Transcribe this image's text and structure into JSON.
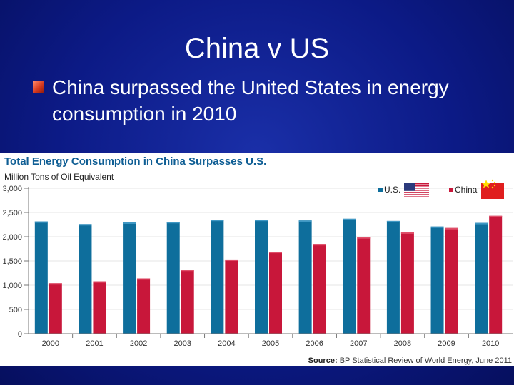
{
  "slide": {
    "title": "China v US",
    "bullet": "China surpassed the United States in energy consumption in 2010"
  },
  "chart_data": {
    "type": "bar",
    "title": "Total Energy Consumption in China Surpasses U.S.",
    "ylabel": "Million Tons of Oil Equivalent",
    "xlabel": "",
    "categories": [
      "2000",
      "2001",
      "2002",
      "2003",
      "2004",
      "2005",
      "2006",
      "2007",
      "2008",
      "2009",
      "2010"
    ],
    "series": [
      {
        "name": "U.S.",
        "color": "#0e6e9c",
        "values": [
          2315,
          2260,
          2295,
          2305,
          2350,
          2350,
          2335,
          2370,
          2325,
          2210,
          2285
        ]
      },
      {
        "name": "China",
        "color": "#c8173a",
        "values": [
          1040,
          1080,
          1140,
          1320,
          1530,
          1690,
          1850,
          1990,
          2090,
          2180,
          2430
        ]
      }
    ],
    "ylim": [
      0,
      3000
    ],
    "yticks": [
      "0",
      "500",
      "1,000",
      "1,500",
      "2,000",
      "2,500",
      "3,000"
    ],
    "grid": true,
    "legend": "top-right",
    "source_label": "Source:",
    "source_text": "BP Statistical Review of World Energy, June 2011"
  },
  "icons": {
    "legend_us": "us-flag-icon",
    "legend_china": "china-flag-icon"
  }
}
